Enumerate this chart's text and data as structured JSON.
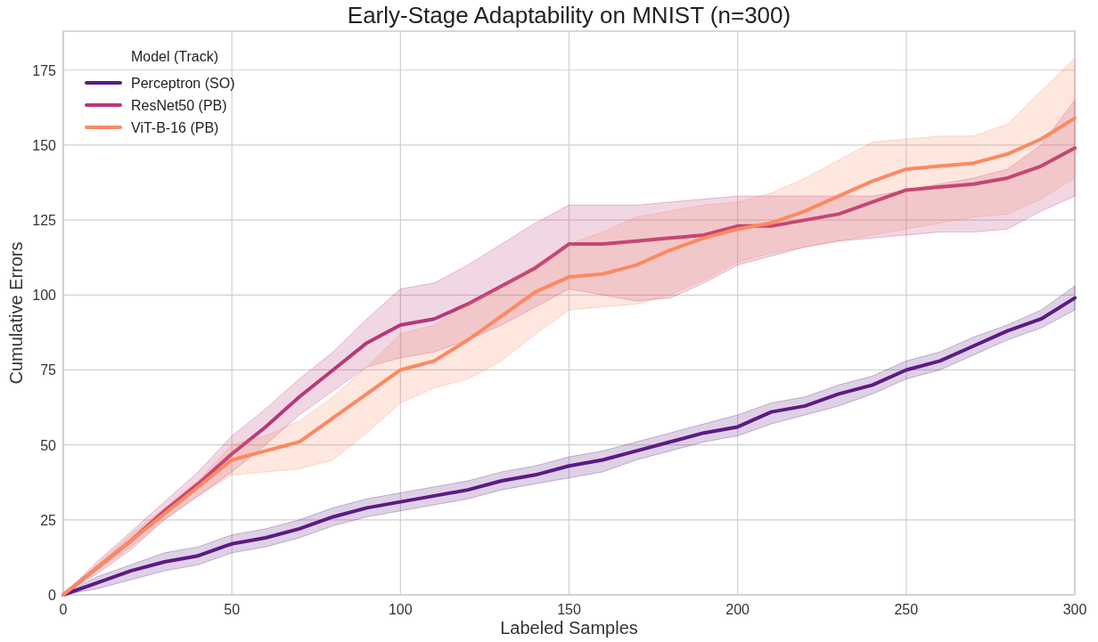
{
  "chart_data": {
    "type": "line",
    "title": "Early-Stage Adaptability on MNIST (n=300)",
    "xlabel": "Labeled Samples",
    "ylabel": "Cumulative Errors",
    "legend_title": "Model (Track)",
    "x": [
      0,
      10,
      20,
      30,
      40,
      50,
      60,
      70,
      80,
      90,
      100,
      110,
      120,
      130,
      140,
      150,
      160,
      170,
      180,
      190,
      200,
      210,
      220,
      230,
      240,
      250,
      260,
      270,
      280,
      290,
      300
    ],
    "series": [
      {
        "name": "Perceptron (SO)",
        "color": "#5c1a84",
        "values": [
          0,
          4,
          8,
          11,
          13,
          17,
          19,
          22,
          26,
          29,
          31,
          33,
          35,
          38,
          40,
          43,
          45,
          48,
          51,
          54,
          56,
          61,
          63,
          67,
          70,
          75,
          78,
          83,
          88,
          92,
          99
        ],
        "lower": [
          0,
          2,
          5,
          8,
          10,
          14,
          16,
          19,
          23,
          26,
          28,
          30,
          32,
          35,
          37,
          39,
          41,
          45,
          48,
          51,
          53,
          57,
          60,
          63,
          67,
          72,
          75,
          80,
          85,
          89,
          95
        ],
        "upper": [
          0,
          6,
          10,
          14,
          16,
          20,
          22,
          25,
          29,
          32,
          34,
          36,
          38,
          41,
          43,
          46,
          48,
          51,
          54,
          57,
          60,
          64,
          66,
          70,
          73,
          78,
          81,
          86,
          90,
          95,
          103
        ]
      },
      {
        "name": "ResNet50 (PB)",
        "color": "#b73779",
        "values": [
          0,
          9,
          18,
          28,
          37,
          47,
          56,
          66,
          75,
          84,
          90,
          92,
          97,
          103,
          109,
          117,
          117,
          118,
          119,
          120,
          123,
          123,
          125,
          127,
          131,
          135,
          136,
          137,
          139,
          143,
          149
        ],
        "lower": [
          0,
          7,
          15,
          25,
          33,
          41,
          50,
          60,
          68,
          76,
          79,
          81,
          85,
          90,
          96,
          102,
          100,
          98,
          99,
          104,
          110,
          113,
          116,
          118,
          119,
          120,
          121,
          121,
          122,
          128,
          133
        ],
        "upper": [
          0,
          11,
          21,
          31,
          41,
          53,
          62,
          72,
          81,
          92,
          102,
          104,
          110,
          117,
          124,
          130,
          130,
          130,
          131,
          132,
          133,
          133,
          133,
          133,
          133,
          135,
          137,
          139,
          142,
          150,
          165
        ]
      },
      {
        "name": "ViT-B-16 (PB)",
        "color": "#fc8961",
        "values": [
          0,
          9,
          18,
          27,
          36,
          45,
          48,
          51,
          59,
          67,
          75,
          78,
          85,
          93,
          101,
          106,
          107,
          110,
          115,
          119,
          122,
          124,
          128,
          133,
          138,
          142,
          143,
          144,
          147,
          152,
          159
        ],
        "lower": [
          0,
          8,
          16,
          25,
          33,
          40,
          41,
          42,
          45,
          54,
          64,
          69,
          72,
          78,
          87,
          95,
          96,
          97,
          100,
          105,
          111,
          114,
          116,
          118,
          120,
          122,
          124,
          126,
          127,
          132,
          139
        ],
        "upper": [
          0,
          10,
          20,
          29,
          38,
          50,
          53,
          58,
          66,
          76,
          87,
          90,
          97,
          103,
          110,
          117,
          121,
          126,
          128,
          130,
          131,
          134,
          139,
          145,
          151,
          152,
          153,
          153,
          157,
          168,
          179
        ]
      }
    ],
    "xlim": [
      0,
      300
    ],
    "xticks": [
      0,
      50,
      100,
      150,
      200,
      250,
      300
    ],
    "ylim": [
      0,
      188
    ],
    "yticks": [
      0,
      25,
      50,
      75,
      100,
      125,
      150,
      175
    ],
    "grid": true,
    "legend": "top left",
    "line_style": "solid",
    "marker": "none"
  }
}
